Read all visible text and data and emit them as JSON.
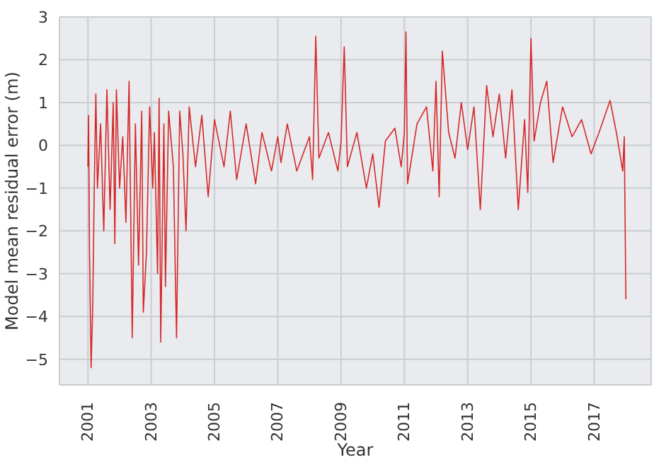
{
  "chart_data": {
    "type": "line",
    "xlabel": "Year",
    "ylabel": "Model mean residual error (m)",
    "x": [
      2001.0,
      2001.02,
      2001.05,
      2001.1,
      2001.15,
      2001.2,
      2001.25,
      2001.3,
      2001.4,
      2001.5,
      2001.6,
      2001.7,
      2001.8,
      2001.85,
      2001.9,
      2002.0,
      2002.1,
      2002.2,
      2002.3,
      2002.4,
      2002.5,
      2002.6,
      2002.7,
      2002.75,
      2002.85,
      2002.95,
      2003.05,
      2003.1,
      2003.2,
      2003.25,
      2003.3,
      2003.4,
      2003.45,
      2003.55,
      2003.7,
      2003.8,
      2003.9,
      2004.0,
      2004.1,
      2004.2,
      2004.4,
      2004.6,
      2004.8,
      2005.0,
      2005.3,
      2005.5,
      2005.7,
      2006.0,
      2006.3,
      2006.5,
      2006.8,
      2007.0,
      2007.1,
      2007.3,
      2007.6,
      2008.0,
      2008.1,
      2008.2,
      2008.3,
      2008.6,
      2008.9,
      2009.0,
      2009.1,
      2009.2,
      2009.5,
      2009.8,
      2010.0,
      2010.2,
      2010.4,
      2010.7,
      2010.9,
      2011.0,
      2011.05,
      2011.1,
      2011.4,
      2011.7,
      2011.9,
      2012.0,
      2012.1,
      2012.2,
      2012.4,
      2012.6,
      2012.8,
      2013.0,
      2013.2,
      2013.4,
      2013.6,
      2013.8,
      2014.0,
      2014.2,
      2014.4,
      2014.6,
      2014.8,
      2014.9,
      2015.0,
      2015.1,
      2015.3,
      2015.5,
      2015.7,
      2016.0,
      2016.3,
      2016.6,
      2016.9,
      2017.2,
      2017.5,
      2017.7,
      2017.9,
      2017.95,
      2018.0
    ],
    "series": [
      {
        "color": "#d62728",
        "values": [
          -0.5,
          0.7,
          -2.5,
          -5.2,
          -3.8,
          -1,
          1.2,
          -1,
          0.5,
          -2,
          1.3,
          -1.5,
          1,
          -2.3,
          1.3,
          -1,
          0.2,
          -1.8,
          1.5,
          -4.5,
          0.5,
          -2.8,
          0.8,
          -3.9,
          -2.5,
          0.9,
          -1,
          0.3,
          -3,
          1.1,
          -4.6,
          0.5,
          -3.3,
          0.8,
          -0.5,
          -4.5,
          0.8,
          -0.2,
          -2,
          0.9,
          -0.5,
          0.7,
          -1.2,
          0.6,
          -0.5,
          0.8,
          -0.8,
          0.5,
          -0.9,
          0.3,
          -0.6,
          0.2,
          -0.4,
          0.5,
          -0.6,
          0.2,
          -0.8,
          2.55,
          -0.3,
          0.3,
          -0.6,
          0.1,
          2.3,
          -0.5,
          0.3,
          -1.0,
          -0.2,
          -1.45,
          0.1,
          0.4,
          -0.5,
          0.3,
          2.65,
          -0.9,
          0.5,
          0.9,
          -0.6,
          1.5,
          -1.2,
          2.2,
          0.3,
          -0.3,
          1.0,
          -0.1,
          0.9,
          -1.5,
          1.4,
          0.2,
          1.2,
          -0.3,
          1.3,
          -1.5,
          0.6,
          -1.1,
          2.5,
          0.1,
          1.0,
          1.5,
          -0.4,
          0.9,
          0.2,
          0.6,
          -0.2,
          0.4,
          1.05,
          0.3,
          -0.6,
          0.2,
          -3.6
        ]
      }
    ],
    "xlim": [
      2000.1,
      2018.8
    ],
    "xticks": [
      2001,
      2003,
      2005,
      2007,
      2009,
      2011,
      2013,
      2015,
      2017
    ],
    "ylim": [
      -5.6,
      3
    ],
    "yticks": [
      {
        "value": -5,
        "label": "−5"
      },
      {
        "value": -4,
        "label": "−4"
      },
      {
        "value": -3,
        "label": "−3"
      },
      {
        "value": -2,
        "label": "−2"
      },
      {
        "value": -1,
        "label": "−1"
      },
      0,
      1,
      2,
      3
    ],
    "grid": true,
    "marker": "none",
    "line_style": "solid"
  }
}
